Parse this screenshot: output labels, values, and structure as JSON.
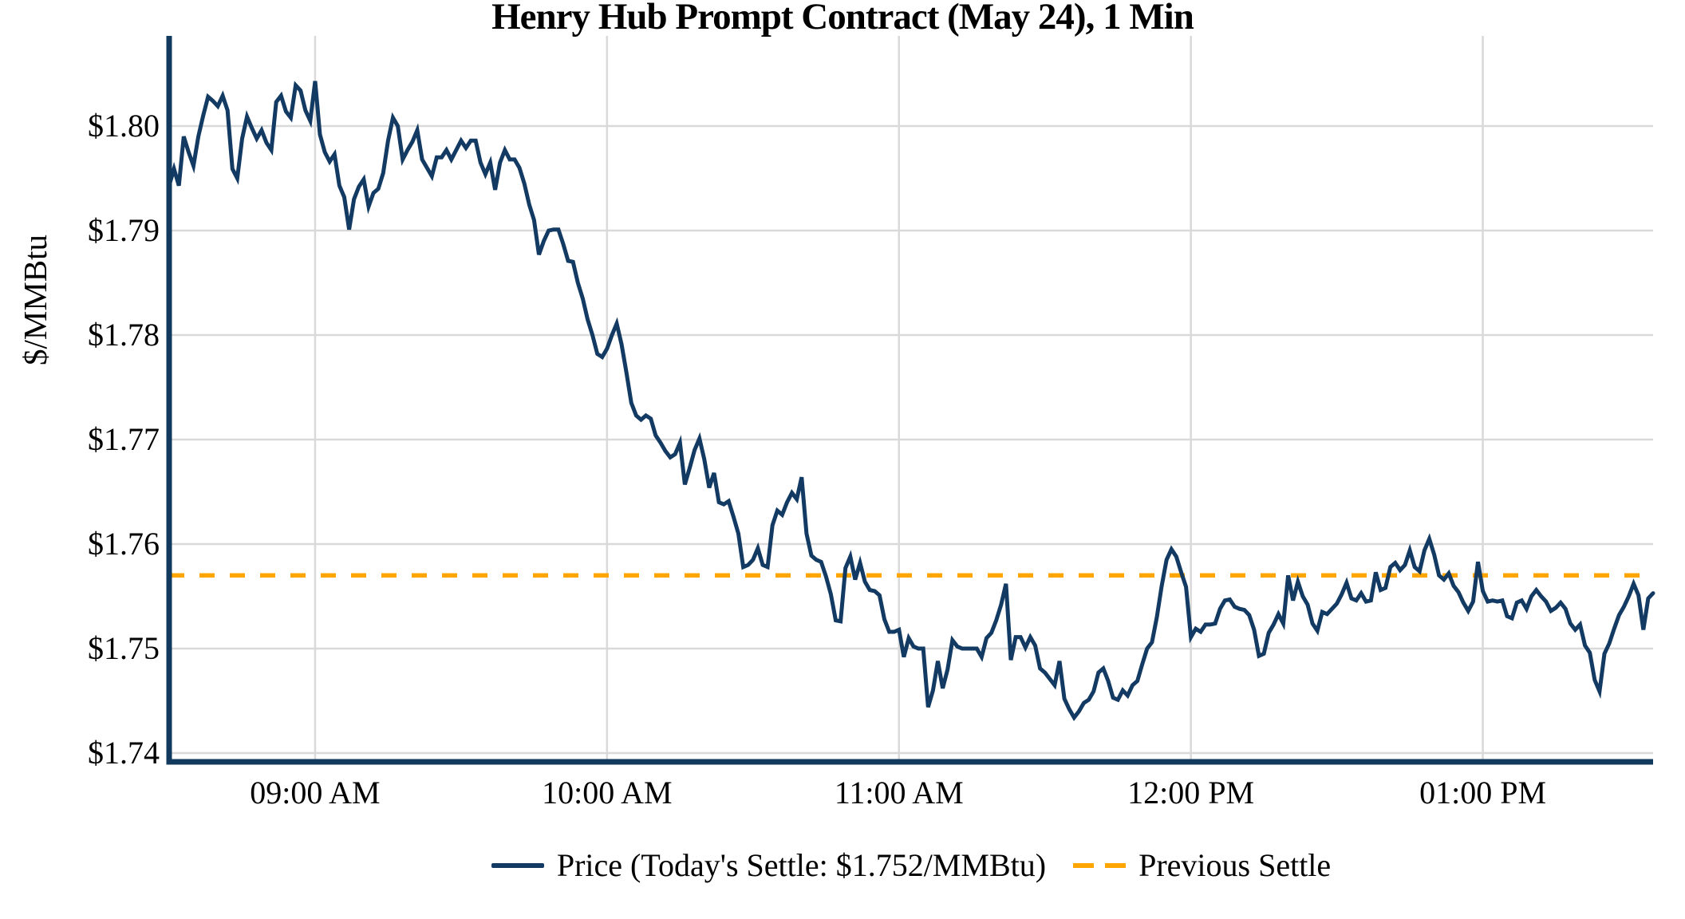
{
  "title": "Henry Hub Prompt Contract (May 24), 1 Min",
  "y_axis_title": "$/MMBtu",
  "legend": {
    "price_label": "Price (Today's Settle: $1.752/MMBtu)",
    "previous_settle_label": "Previous Settle"
  },
  "colors": {
    "price_line": "#123a62",
    "previous_settle_line": "#ffa500",
    "gridline": "#d9d9d9",
    "axis": "#12395e",
    "text": "#000000",
    "background": "#ffffff"
  },
  "chart_data": {
    "type": "line",
    "title": "Henry Hub Prompt Contract (May 24), 1 Min",
    "xlabel": "",
    "ylabel": "$/MMBtu",
    "grid": true,
    "legend_position": "bottom",
    "x_start_time": "08:30 AM",
    "x_end_time": "01:35 PM",
    "interval_minutes": 1,
    "x_tick_labels": [
      "09:00 AM",
      "10:00 AM",
      "11:00 AM",
      "12:00 PM",
      "01:00 PM"
    ],
    "x_tick_minutes": [
      30,
      90,
      150,
      210,
      270
    ],
    "y_tick_labels": [
      "$1.74",
      "$1.75",
      "$1.76",
      "$1.77",
      "$1.78",
      "$1.79",
      "$1.80"
    ],
    "y_ticks": [
      1.74,
      1.75,
      1.76,
      1.77,
      1.78,
      1.79,
      1.8
    ],
    "ylim": [
      1.7392,
      1.8086
    ],
    "todays_settle": 1.752,
    "previous_settle": 1.757,
    "series": [
      {
        "name": "Price (Today's Settle: $1.752/MMBtu)",
        "style": "solid",
        "color": "#123a62",
        "values": [
          1.7943,
          1.7959,
          1.7943,
          1.799,
          1.7975,
          1.7962,
          1.799,
          1.801,
          1.8028,
          1.8024,
          1.8019,
          1.8029,
          1.8015,
          1.7959,
          1.795,
          1.7988,
          1.8009,
          1.7998,
          1.7988,
          1.7996,
          1.7984,
          1.7977,
          1.8023,
          1.8029,
          1.8014,
          1.8008,
          1.8039,
          1.8034,
          1.8015,
          1.8005,
          1.8043,
          1.7992,
          1.7975,
          1.7966,
          1.7973,
          1.7943,
          1.7932,
          1.7901,
          1.793,
          1.7942,
          1.7949,
          1.7923,
          1.7936,
          1.794,
          1.7955,
          1.7986,
          1.8008,
          1.8,
          1.7968,
          1.7977,
          1.7985,
          1.7996,
          1.7968,
          1.796,
          1.7952,
          1.797,
          1.797,
          1.7977,
          1.7968,
          1.7977,
          1.7986,
          1.7979,
          1.7986,
          1.7986,
          1.7965,
          1.7954,
          1.7965,
          1.7939,
          1.7965,
          1.7977,
          1.7968,
          1.7968,
          1.796,
          1.7945,
          1.7925,
          1.791,
          1.7877,
          1.789,
          1.79,
          1.7901,
          1.7901,
          1.7887,
          1.7871,
          1.787,
          1.785,
          1.7835,
          1.7815,
          1.78,
          1.7782,
          1.7779,
          1.7787,
          1.78,
          1.7811,
          1.7791,
          1.7764,
          1.7735,
          1.7723,
          1.7719,
          1.7723,
          1.772,
          1.7704,
          1.7697,
          1.7689,
          1.7683,
          1.7686,
          1.7697,
          1.7657,
          1.7673,
          1.769,
          1.7701,
          1.7681,
          1.7654,
          1.7668,
          1.764,
          1.7638,
          1.7641,
          1.7626,
          1.761,
          1.7578,
          1.758,
          1.7585,
          1.7596,
          1.758,
          1.7578,
          1.7618,
          1.7632,
          1.7628,
          1.764,
          1.7649,
          1.7643,
          1.7664,
          1.761,
          1.7589,
          1.7585,
          1.7583,
          1.7569,
          1.7552,
          1.7527,
          1.7526,
          1.7577,
          1.7588,
          1.7566,
          1.7582,
          1.7564,
          1.7556,
          1.7555,
          1.7551,
          1.7528,
          1.7516,
          1.7516,
          1.7518,
          1.7492,
          1.751,
          1.7502,
          1.75,
          1.75,
          1.7444,
          1.746,
          1.7488,
          1.7462,
          1.748,
          1.7508,
          1.7502,
          1.75,
          1.75,
          1.75,
          1.75,
          1.7492,
          1.751,
          1.7515,
          1.7527,
          1.7542,
          1.7562,
          1.7489,
          1.7511,
          1.7511,
          1.7501,
          1.7511,
          1.7503,
          1.7481,
          1.7477,
          1.7471,
          1.7465,
          1.7488,
          1.7452,
          1.7442,
          1.7434,
          1.744,
          1.7448,
          1.7451,
          1.7459,
          1.7477,
          1.7481,
          1.7469,
          1.7453,
          1.7451,
          1.746,
          1.7455,
          1.7465,
          1.7469,
          1.7485,
          1.75,
          1.7506,
          1.753,
          1.756,
          1.7585,
          1.7595,
          1.7588,
          1.7573,
          1.7559,
          1.7511,
          1.7519,
          1.7516,
          1.7523,
          1.7523,
          1.7524,
          1.7538,
          1.7546,
          1.7547,
          1.754,
          1.7538,
          1.7537,
          1.7532,
          1.7518,
          1.7493,
          1.7495,
          1.7515,
          1.7523,
          1.7533,
          1.7524,
          1.757,
          1.7546,
          1.7564,
          1.755,
          1.7542,
          1.7524,
          1.7517,
          1.7535,
          1.7533,
          1.7538,
          1.7543,
          1.7552,
          1.7563,
          1.7548,
          1.7546,
          1.7553,
          1.7545,
          1.7546,
          1.7573,
          1.7556,
          1.7558,
          1.7578,
          1.7582,
          1.7575,
          1.758,
          1.7594,
          1.7578,
          1.7574,
          1.7594,
          1.7605,
          1.759,
          1.757,
          1.7566,
          1.7572,
          1.756,
          1.7554,
          1.7544,
          1.7536,
          1.7545,
          1.7583,
          1.7555,
          1.7545,
          1.7546,
          1.7545,
          1.7546,
          1.7531,
          1.7529,
          1.7544,
          1.7546,
          1.7538,
          1.755,
          1.7556,
          1.755,
          1.7545,
          1.7536,
          1.7539,
          1.7544,
          1.7538,
          1.7524,
          1.7518,
          1.7523,
          1.7503,
          1.7496,
          1.747,
          1.7459,
          1.7495,
          1.7505,
          1.7519,
          1.7532,
          1.754,
          1.755,
          1.7562,
          1.7551,
          1.7518,
          1.7548,
          1.7553
        ]
      },
      {
        "name": "Previous Settle",
        "style": "dashed",
        "color": "#ffa500",
        "value": 1.757
      }
    ]
  }
}
